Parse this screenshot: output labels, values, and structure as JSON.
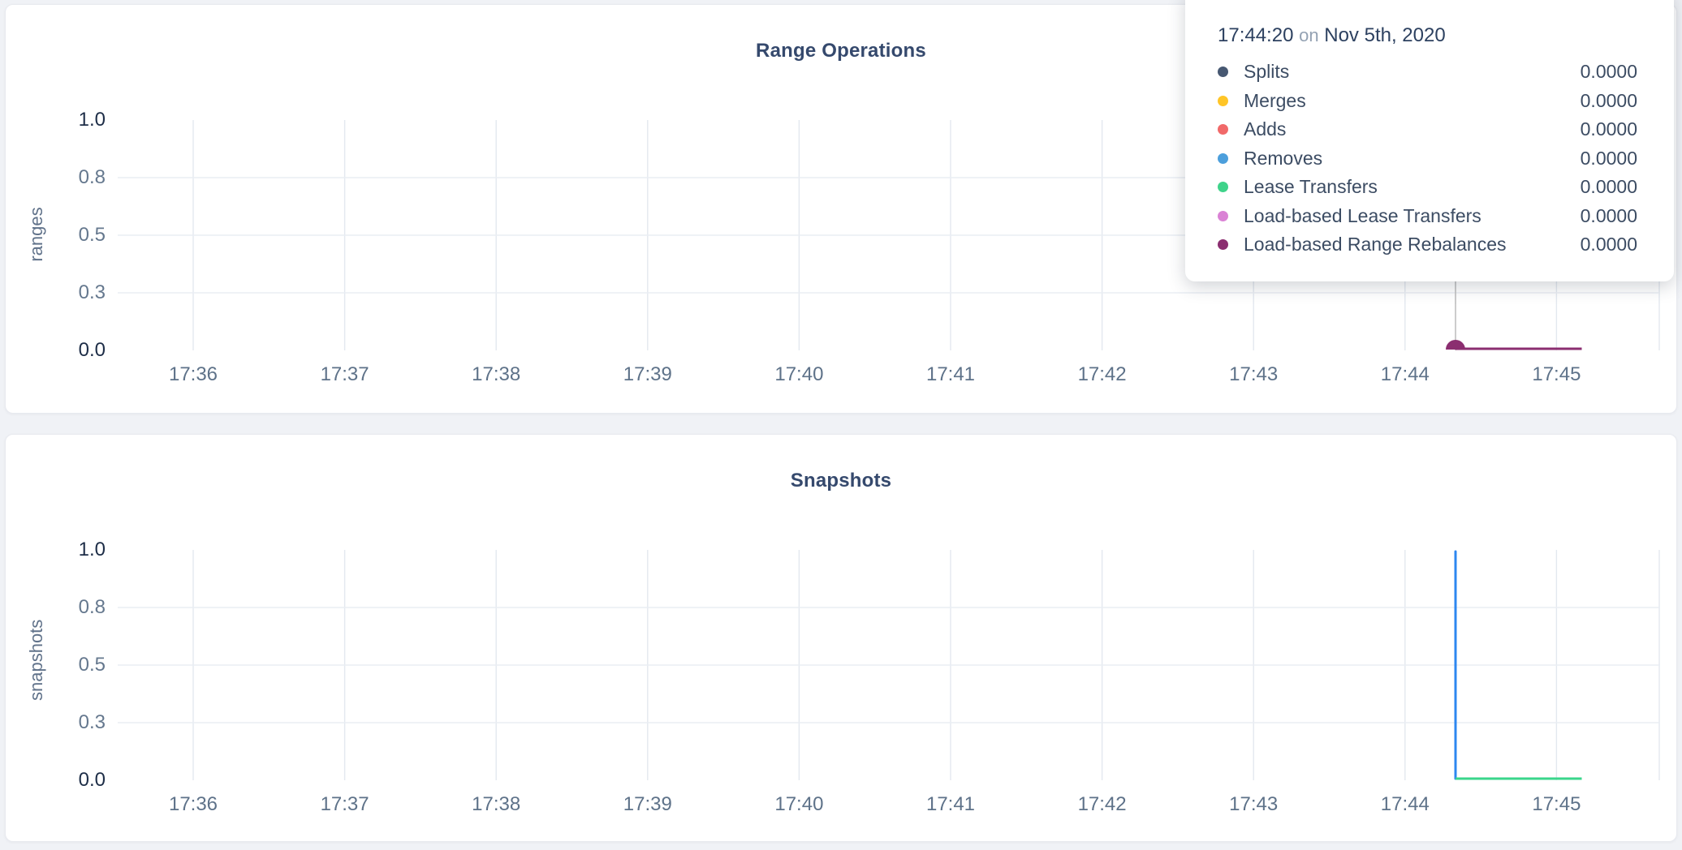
{
  "page": {
    "background_color": "#f0f2f6",
    "card_color": "#ffffff"
  },
  "tooltip": {
    "time": "17:44:20",
    "connector": "on",
    "date": "Nov 5th, 2020",
    "rows": [
      {
        "label": "Splits",
        "value": "0.0000",
        "color": "#475872"
      },
      {
        "label": "Merges",
        "value": "0.0000",
        "color": "#FFC527"
      },
      {
        "label": "Adds",
        "value": "0.0000",
        "color": "#F16969"
      },
      {
        "label": "Removes",
        "value": "0.0000",
        "color": "#4C9FDC"
      },
      {
        "label": "Lease Transfers",
        "value": "0.0000",
        "color": "#3FD38A"
      },
      {
        "label": "Load-based Lease Transfers",
        "value": "0.0000",
        "color": "#DA82D5"
      },
      {
        "label": "Load-based Range Rebalances",
        "value": "0.0000",
        "color": "#8B2E70"
      }
    ]
  },
  "chart_data": [
    {
      "type": "line",
      "title": "Range Operations",
      "ylabel": "ranges",
      "ylim": [
        0,
        1
      ],
      "grid": true,
      "legend_position": "tooltip-overlay",
      "y_ticks": [
        {
          "label": "1.0",
          "value": 1
        },
        {
          "label": "0.8",
          "value": 0.75
        },
        {
          "label": "0.5",
          "value": 0.5
        },
        {
          "label": "0.3",
          "value": 0.25
        },
        {
          "label": "0.0",
          "value": 0
        }
      ],
      "x_ticks": [
        "17:36",
        "17:37",
        "17:38",
        "17:39",
        "17:40",
        "17:41",
        "17:42",
        "17:43",
        "17:44",
        "17:45"
      ],
      "series": [
        {
          "name": "Splits",
          "color": "#475872",
          "points": [
            [
              "17:44:20",
              0
            ],
            [
              "17:45:10",
              0
            ]
          ]
        },
        {
          "name": "Merges",
          "color": "#FFC527",
          "points": [
            [
              "17:44:20",
              0
            ],
            [
              "17:45:10",
              0
            ]
          ]
        },
        {
          "name": "Adds",
          "color": "#F16969",
          "points": [
            [
              "17:44:20",
              0
            ],
            [
              "17:45:10",
              0
            ]
          ]
        },
        {
          "name": "Removes",
          "color": "#4C9FDC",
          "points": [
            [
              "17:44:20",
              0
            ],
            [
              "17:45:10",
              0
            ]
          ]
        },
        {
          "name": "Lease Transfers",
          "color": "#3FD38A",
          "points": [
            [
              "17:44:20",
              0
            ],
            [
              "17:45:10",
              0
            ]
          ]
        },
        {
          "name": "Load-based Lease Transfers",
          "color": "#DA82D5",
          "points": [
            [
              "17:44:20",
              0
            ],
            [
              "17:45:10",
              0
            ]
          ]
        },
        {
          "name": "Load-based Range Rebalances",
          "color": "#8B2E70",
          "points": [
            [
              "17:44:20",
              0
            ],
            [
              "17:45:10",
              0
            ]
          ]
        }
      ],
      "hover": {
        "time": "17:44:20",
        "value": 0,
        "dot_color": "#8B2E70",
        "crosshair": true
      }
    },
    {
      "type": "line",
      "title": "Snapshots",
      "ylabel": "snapshots",
      "ylim": [
        0,
        1
      ],
      "grid": true,
      "y_ticks": [
        {
          "label": "1.0",
          "value": 1
        },
        {
          "label": "0.8",
          "value": 0.75
        },
        {
          "label": "0.5",
          "value": 0.5
        },
        {
          "label": "0.3",
          "value": 0.25
        },
        {
          "label": "0.0",
          "value": 0
        }
      ],
      "x_ticks": [
        "17:36",
        "17:37",
        "17:38",
        "17:39",
        "17:40",
        "17:41",
        "17:42",
        "17:43",
        "17:44",
        "17:45"
      ],
      "series": [
        {
          "name": "",
          "color": "#2D87F0",
          "points": [
            [
              "17:44:20",
              0
            ],
            [
              "17:44:20",
              1
            ],
            [
              "17:44:20",
              0
            ],
            [
              "17:45:10",
              0
            ]
          ]
        },
        {
          "name": "",
          "color": "#3AD68B",
          "points": [
            [
              "17:44:20",
              0
            ],
            [
              "17:45:10",
              0
            ]
          ]
        }
      ]
    }
  ]
}
